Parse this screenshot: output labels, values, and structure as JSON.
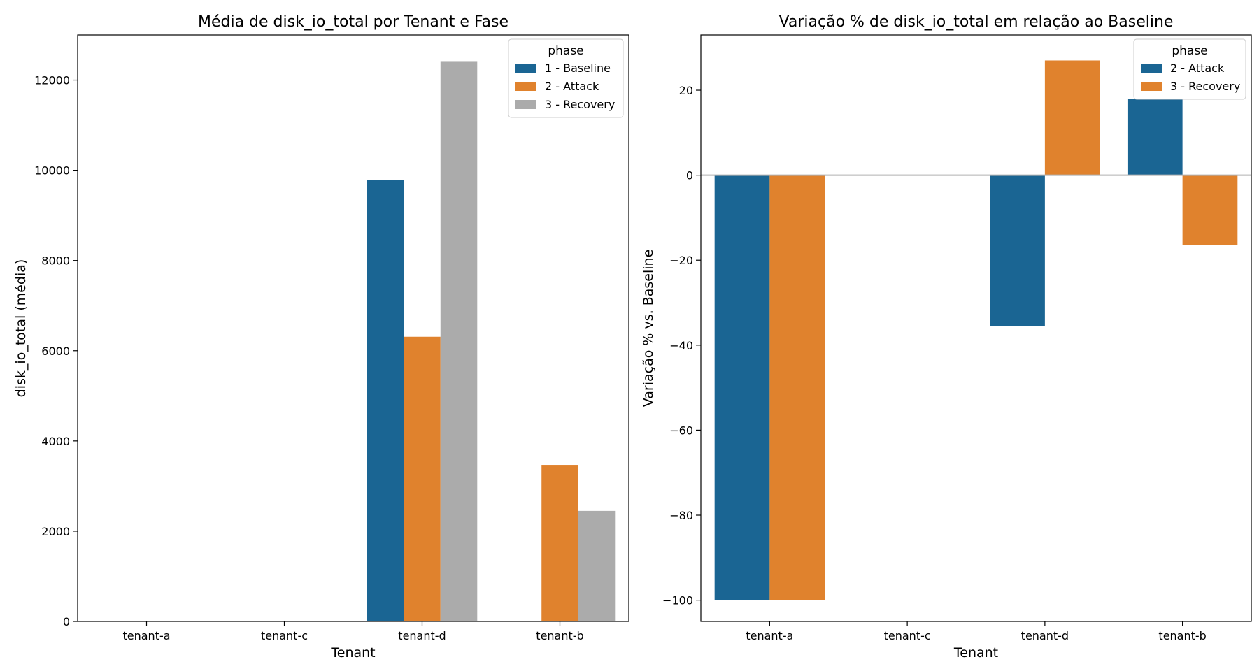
{
  "chart_data": [
    {
      "type": "bar",
      "title": "Média de disk_io_total por Tenant e Fase",
      "xlabel": "Tenant",
      "ylabel": "disk_io_total (média)",
      "categories": [
        "tenant-a",
        "tenant-c",
        "tenant-d",
        "tenant-b"
      ],
      "ylim": [
        0,
        13000
      ],
      "yticks": [
        0,
        2000,
        4000,
        6000,
        8000,
        10000,
        12000
      ],
      "legend": {
        "title": "phase",
        "placement": "top-right"
      },
      "series": [
        {
          "name": "1 - Baseline",
          "color": "#1a6593",
          "values": [
            0,
            0,
            9780,
            0
          ]
        },
        {
          "name": "2 - Attack",
          "color": "#e0822d",
          "values": [
            0,
            0,
            6310,
            3470
          ]
        },
        {
          "name": "3 - Recovery",
          "color": "#ababab",
          "values": [
            0,
            0,
            12420,
            2450
          ]
        }
      ],
      "grid": false
    },
    {
      "type": "bar",
      "title": "Variação % de disk_io_total em relação ao Baseline",
      "xlabel": "Tenant",
      "ylabel": "Variação % vs. Baseline",
      "categories": [
        "tenant-a",
        "tenant-c",
        "tenant-d",
        "tenant-b"
      ],
      "ylim": [
        -105,
        33
      ],
      "yticks": [
        -100,
        -80,
        -60,
        -40,
        -20,
        0,
        20
      ],
      "ytick_labels": [
        "−100",
        "−80",
        "−60",
        "−40",
        "−20",
        "0",
        "20"
      ],
      "zero_line": true,
      "legend": {
        "title": "phase",
        "placement": "top-right"
      },
      "series": [
        {
          "name": "2 - Attack",
          "color": "#1a6593",
          "values": [
            -100,
            0,
            -35.5,
            18
          ]
        },
        {
          "name": "3 - Recovery",
          "color": "#e0822d",
          "values": [
            -100,
            0,
            27,
            -16.5
          ]
        }
      ],
      "grid": false
    }
  ]
}
